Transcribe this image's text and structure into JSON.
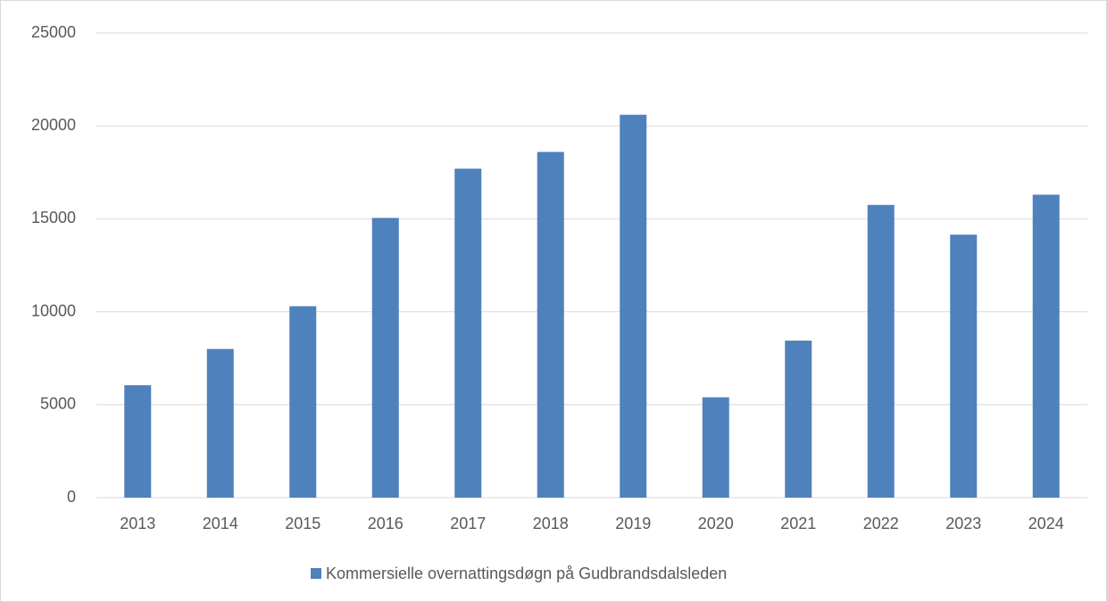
{
  "chart_data": {
    "type": "bar",
    "categories": [
      "2013",
      "2014",
      "2015",
      "2016",
      "2017",
      "2018",
      "2019",
      "2020",
      "2021",
      "2022",
      "2023",
      "2024"
    ],
    "series": [
      {
        "name": "Kommersielle overnattingsdøgn på Gudbrandsdalsleden",
        "color": "#4f81bd",
        "values": [
          6050,
          8000,
          10300,
          15050,
          17700,
          18600,
          20600,
          5400,
          8450,
          15750,
          14150,
          16300
        ]
      }
    ],
    "ylim": [
      0,
      25000
    ],
    "yticks": [
      0,
      5000,
      10000,
      15000,
      20000,
      25000
    ],
    "grid": true,
    "legend": "bottom"
  }
}
